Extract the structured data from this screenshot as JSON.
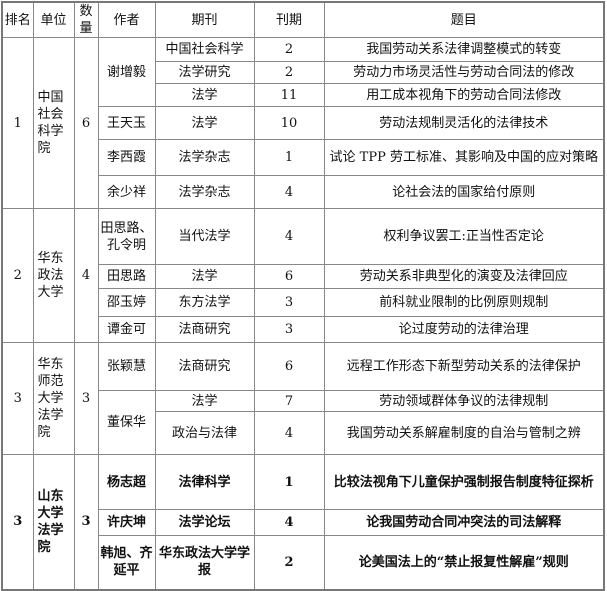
{
  "headers": [
    "排名",
    "单位",
    "数量",
    "作者",
    "期刊",
    "刊期",
    "题目"
  ],
  "groups": [
    {
      "rank": "1",
      "unit": "中国社会科学院",
      "count": "6",
      "bold": false,
      "authors": [
        {
          "name": "谢增毅",
          "papers": [
            {
              "journal": "中国社会科学",
              "issue": "2",
              "title": "我国劳动关系法律调整模式的转变"
            },
            {
              "journal": "法学研究",
              "issue": "2",
              "title": "劳动力市场灵活性与劳动合同法的修改"
            },
            {
              "journal": "法学",
              "issue": "11",
              "title": "用工成本视角下的劳动合同法修改"
            }
          ]
        },
        {
          "name": "王天玉",
          "papers": [
            {
              "journal": "法学",
              "issue": "10",
              "title": "劳动法规制灵活化的法律技术"
            }
          ]
        },
        {
          "name": "李西霞",
          "papers": [
            {
              "journal": "法学杂志",
              "issue": "1",
              "title": "试论 TPP 劳工标准、其影响及中国的应对策略"
            }
          ]
        },
        {
          "name": "余少祥",
          "papers": [
            {
              "journal": "法学杂志",
              "issue": "4",
              "title": "论社会法的国家给付原则"
            }
          ]
        }
      ]
    },
    {
      "rank": "2",
      "unit": "华东政法大学",
      "count": "4",
      "bold": false,
      "authors": [
        {
          "name": "田思路、孔令明",
          "papers": [
            {
              "journal": "当代法学",
              "issue": "4",
              "title": "权利争议罢工:正当性否定论"
            }
          ]
        },
        {
          "name": "田思路",
          "papers": [
            {
              "journal": "法学",
              "issue": "6",
              "title": "劳动关系非典型化的演变及法律回应"
            }
          ]
        },
        {
          "name": "邵玉婷",
          "papers": [
            {
              "journal": "东方法学",
              "issue": "3",
              "title": "前科就业限制的比例原则规制"
            }
          ]
        },
        {
          "name": "谭金可",
          "papers": [
            {
              "journal": "法商研究",
              "issue": "3",
              "title": "论过度劳动的法律治理"
            }
          ]
        }
      ]
    },
    {
      "rank": "3",
      "unit": "华东师范大学法学院",
      "count": "3",
      "bold": false,
      "authors": [
        {
          "name": "张颖慧",
          "papers": [
            {
              "journal": "法商研究",
              "issue": "6",
              "title": "远程工作形态下新型劳动关系的法律保护"
            }
          ]
        },
        {
          "name": "董保华",
          "papers": [
            {
              "journal": "法学",
              "issue": "7",
              "title": "劳动领域群体争议的法律规制"
            },
            {
              "journal": "政治与法律",
              "issue": "4",
              "title": "我国劳动关系解雇制度的自治与管制之辨"
            }
          ]
        }
      ]
    },
    {
      "rank": "3",
      "unit": "山东大学法学院",
      "count": "3",
      "bold": true,
      "authors": [
        {
          "name": "杨志超",
          "papers": [
            {
              "journal": "法律科学",
              "issue": "1",
              "title": "比较法视角下儿童保护强制报告制度特征探析"
            }
          ]
        },
        {
          "name": "许庆坤",
          "papers": [
            {
              "journal": "法学论坛",
              "issue": "4",
              "title": "论我国劳动合同冲突法的司法解释"
            }
          ]
        },
        {
          "name": "韩旭、齐延平",
          "papers": [
            {
              "journal": "华东政法大学学报",
              "issue": "2",
              "title": "论美国法上的“禁止报复性解雇”规则"
            }
          ]
        }
      ]
    }
  ]
}
